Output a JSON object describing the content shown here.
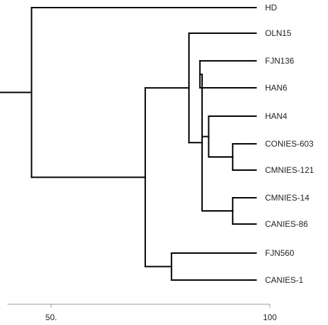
{
  "dendrogram": {
    "leaves": [
      {
        "id": "hd",
        "label": "HD"
      },
      {
        "id": "oln15",
        "label": "OLN15"
      },
      {
        "id": "fjn136",
        "label": "FJN136"
      },
      {
        "id": "han6",
        "label": "HAN6"
      },
      {
        "id": "han4",
        "label": "HAN4"
      },
      {
        "id": "conies603",
        "label": "CONIES-603"
      },
      {
        "id": "cmnies121",
        "label": "CMNIES-121"
      },
      {
        "id": "cmnies14",
        "label": "CMNIES-14"
      },
      {
        "id": "canies86",
        "label": "CANIES-86"
      },
      {
        "id": "fjn560",
        "label": "FJN560"
      },
      {
        "id": "canies1",
        "label": "CANIES-1"
      }
    ],
    "scale_min": 40,
    "scale_max": 100,
    "node_heights": {
      "root": 45.5,
      "n_rest": 71.5,
      "n_fj560": 77.5,
      "n_big": 81.5,
      "n_fjn136": 84,
      "n_mid": 84.5,
      "n_han4": 86,
      "n_c603": 91.5,
      "n_c14": 91.5
    },
    "axis": {
      "ticks": [
        {
          "value": 50,
          "label": "50."
        },
        {
          "value": 100,
          "label": "100"
        }
      ]
    },
    "colors": {
      "line": "#000000",
      "axis": "#9a9a9a",
      "text": "#222222"
    }
  }
}
